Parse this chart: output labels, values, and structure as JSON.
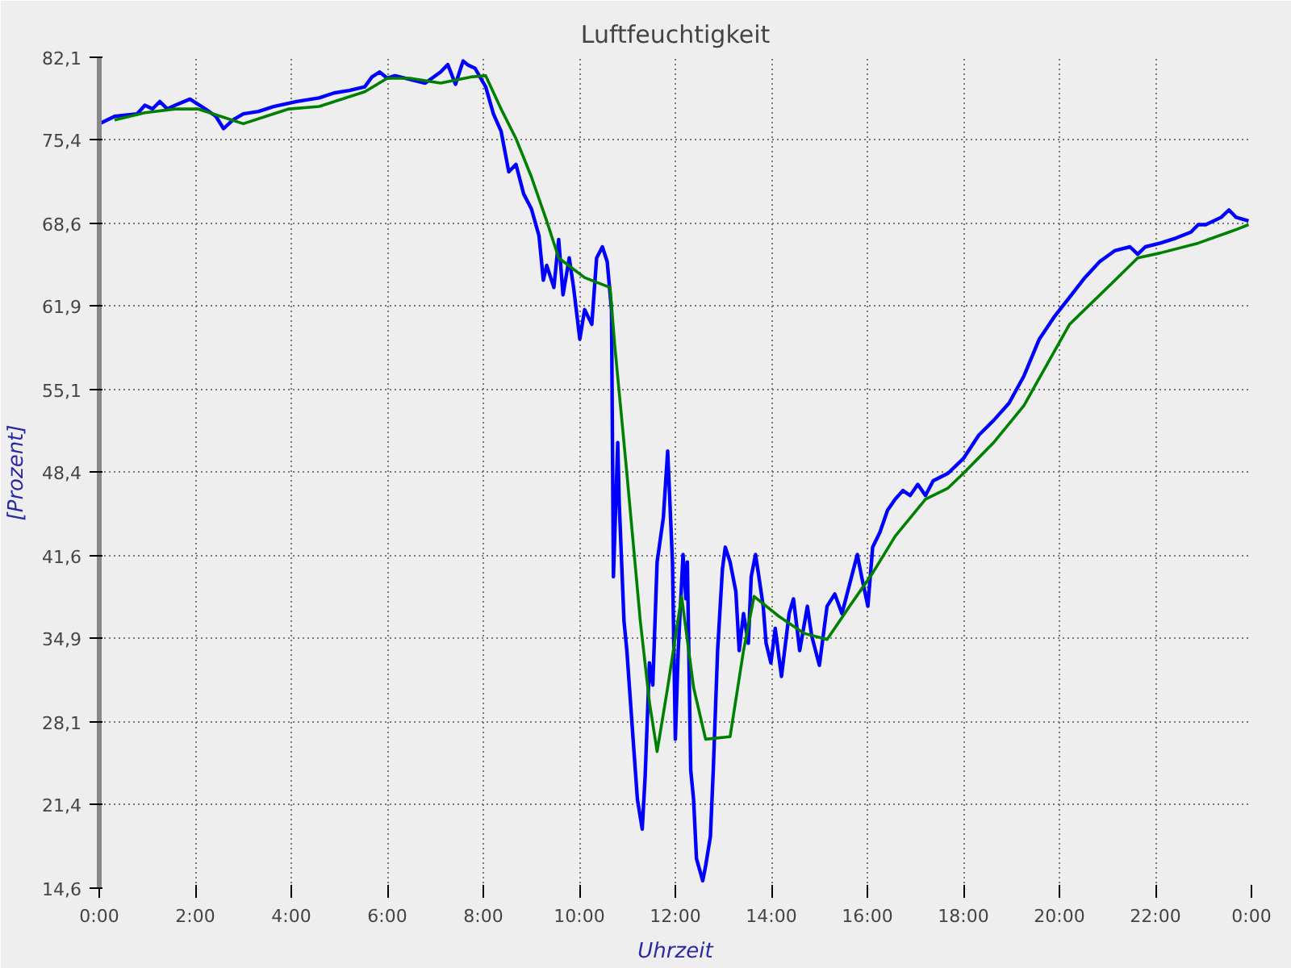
{
  "chart_data": {
    "type": "line",
    "title": "Luftfeuchtigkeit",
    "xlabel": "Uhrzeit",
    "ylabel": "[Prozent]",
    "xlim": [
      0,
      24
    ],
    "ylim": [
      14.6,
      82.1
    ],
    "xticks": [
      {
        "value": 0,
        "label": "0:00"
      },
      {
        "value": 2,
        "label": "2:00"
      },
      {
        "value": 4,
        "label": "4:00"
      },
      {
        "value": 6,
        "label": "6:00"
      },
      {
        "value": 8,
        "label": "8:00"
      },
      {
        "value": 10,
        "label": "10:00"
      },
      {
        "value": 12,
        "label": "12:00"
      },
      {
        "value": 14,
        "label": "14:00"
      },
      {
        "value": 16,
        "label": "16:00"
      },
      {
        "value": 18,
        "label": "18:00"
      },
      {
        "value": 20,
        "label": "20:00"
      },
      {
        "value": 22,
        "label": "22:00"
      },
      {
        "value": 24,
        "label": "0:00"
      }
    ],
    "yticks": [
      {
        "value": 14.6,
        "label": "14,6"
      },
      {
        "value": 21.4,
        "label": "21,4"
      },
      {
        "value": 28.1,
        "label": "28,1"
      },
      {
        "value": 34.9,
        "label": "34,9"
      },
      {
        "value": 41.6,
        "label": "41,6"
      },
      {
        "value": 48.4,
        "label": "48,4"
      },
      {
        "value": 55.1,
        "label": "55,1"
      },
      {
        "value": 61.9,
        "label": "61,9"
      },
      {
        "value": 68.6,
        "label": "68,6"
      },
      {
        "value": 75.4,
        "label": "75,4"
      },
      {
        "value": 82.1,
        "label": "82,1"
      }
    ],
    "grid": true,
    "marker": "none",
    "line_style": "solid",
    "series": [
      {
        "color": "#0000ff",
        "x": [
          0,
          0.32,
          0.79,
          0.95,
          1.11,
          1.26,
          1.42,
          1.58,
          1.89,
          2.21,
          2.43,
          2.59,
          2.78,
          3.0,
          3.32,
          3.63,
          4.11,
          4.58,
          4.89,
          5.21,
          5.53,
          5.68,
          5.84,
          6.0,
          6.16,
          6.47,
          6.79,
          7.11,
          7.26,
          7.42,
          7.52,
          7.58,
          7.67,
          7.83,
          7.96,
          8.05,
          8.21,
          8.37,
          8.53,
          8.68,
          8.84,
          9.0,
          9.16,
          9.25,
          9.32,
          9.47,
          9.57,
          9.66,
          9.79,
          9.88,
          10.01,
          10.11,
          10.26,
          10.36,
          10.48,
          10.58,
          10.67,
          10.71,
          10.8,
          10.83,
          10.93,
          10.99,
          11.12,
          11.21,
          11.31,
          11.37,
          11.46,
          11.53,
          11.62,
          11.75,
          11.84,
          11.94,
          12.0,
          12.06,
          12.16,
          12.22,
          12.25,
          12.32,
          12.38,
          12.44,
          12.57,
          12.63,
          12.73,
          12.79,
          12.88,
          12.98,
          13.04,
          13.14,
          13.26,
          13.33,
          13.42,
          13.52,
          13.58,
          13.67,
          13.74,
          13.83,
          13.89,
          13.99,
          14.08,
          14.21,
          14.37,
          14.46,
          14.59,
          14.75,
          14.84,
          15.0,
          15.16,
          15.32,
          15.47,
          15.63,
          15.79,
          15.88,
          16.01,
          16.11,
          16.26,
          16.42,
          16.58,
          16.74,
          16.89,
          17.05,
          17.21,
          17.37,
          17.68,
          18.0,
          18.32,
          18.63,
          18.95,
          19.26,
          19.58,
          19.89,
          20.21,
          20.53,
          20.84,
          21.16,
          21.47,
          21.63,
          21.79,
          22.1,
          22.42,
          22.74,
          22.89,
          23.05,
          23.37,
          23.53,
          23.68,
          23.94
        ],
        "values": [
          76.7,
          77.3,
          77.5,
          78.2,
          77.9,
          78.5,
          77.9,
          78.2,
          78.7,
          77.9,
          77.3,
          76.3,
          77.0,
          77.5,
          77.7,
          78.1,
          78.5,
          78.8,
          79.2,
          79.4,
          79.7,
          80.5,
          80.9,
          80.4,
          80.6,
          80.3,
          80.0,
          80.9,
          81.5,
          79.9,
          81.1,
          81.8,
          81.5,
          81.2,
          80.3,
          79.7,
          77.5,
          76.1,
          72.8,
          73.4,
          71.0,
          69.8,
          67.6,
          64.0,
          65.2,
          63.4,
          67.3,
          62.8,
          65.8,
          63.4,
          59.2,
          61.6,
          60.4,
          65.8,
          66.7,
          65.5,
          61.6,
          39.9,
          50.8,
          46.0,
          36.3,
          33.9,
          26.7,
          21.8,
          19.4,
          23.6,
          32.9,
          31.1,
          41.1,
          44.7,
          50.1,
          41.1,
          26.7,
          33.9,
          41.7,
          38.1,
          41.1,
          24.2,
          21.8,
          17.0,
          15.2,
          16.4,
          18.8,
          24.2,
          33.9,
          40.5,
          42.3,
          41.1,
          38.7,
          33.9,
          36.9,
          34.5,
          39.9,
          41.7,
          39.9,
          37.5,
          34.5,
          32.9,
          35.7,
          31.8,
          36.9,
          38.1,
          33.9,
          37.5,
          35.1,
          32.7,
          37.5,
          38.5,
          36.9,
          39.3,
          41.7,
          39.9,
          37.5,
          42.3,
          43.5,
          45.3,
          46.2,
          46.9,
          46.5,
          47.4,
          46.5,
          47.7,
          48.3,
          49.5,
          51.4,
          52.6,
          54.0,
          56.2,
          59.2,
          61.0,
          62.6,
          64.2,
          65.5,
          66.4,
          66.7,
          66.1,
          66.7,
          67.0,
          67.4,
          67.9,
          68.5,
          68.5,
          69.1,
          69.7,
          69.1,
          68.8
        ]
      },
      {
        "color": "#008000",
        "x": [
          0.32,
          0.95,
          1.58,
          2.05,
          2.53,
          3.0,
          3.47,
          3.95,
          4.58,
          5.53,
          6.0,
          6.47,
          7.11,
          7.74,
          8.05,
          8.37,
          8.68,
          9.0,
          9.32,
          9.57,
          10.11,
          10.64,
          10.74,
          10.99,
          11.27,
          11.46,
          11.62,
          11.84,
          12.13,
          12.38,
          12.63,
          13.14,
          13.42,
          13.64,
          14.15,
          14.68,
          15.16,
          15.63,
          16.11,
          16.58,
          17.21,
          17.68,
          18.0,
          18.63,
          19.26,
          20.21,
          21.16,
          21.63,
          22.1,
          22.89,
          23.68,
          23.94
        ],
        "values": [
          77.0,
          77.6,
          77.9,
          77.9,
          77.3,
          76.7,
          77.3,
          77.9,
          78.1,
          79.3,
          80.4,
          80.4,
          80.0,
          80.5,
          80.6,
          77.9,
          75.5,
          72.4,
          68.8,
          65.8,
          64.2,
          63.4,
          58.6,
          48.3,
          36.3,
          29.7,
          25.7,
          30.9,
          38.3,
          30.9,
          26.7,
          26.9,
          33.9,
          38.3,
          36.7,
          35.3,
          34.8,
          37.5,
          40.2,
          43.2,
          46.2,
          47.1,
          48.3,
          50.8,
          53.8,
          60.4,
          64.0,
          65.8,
          66.2,
          67.0,
          68.1,
          68.5
        ]
      }
    ]
  }
}
